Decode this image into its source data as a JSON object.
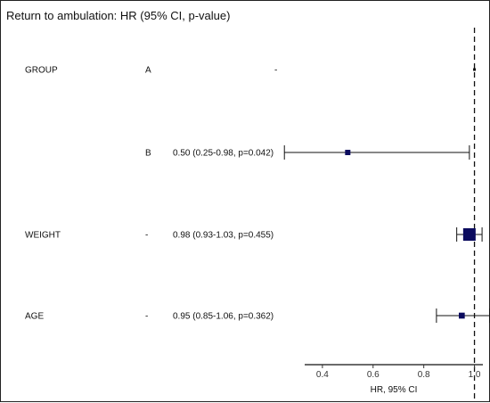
{
  "chart_data": {
    "type": "forest",
    "title": "Return to ambulation: HR (95% CI, p-value)",
    "xlabel": "HR, 95% CI",
    "xlim": [
      0.2,
      1.1
    ],
    "xticks": [
      "0.4",
      "0.6",
      "0.8",
      "1.0"
    ],
    "xtick_values": [
      0.4,
      0.6,
      0.8,
      1.0
    ],
    "reference_line": 1.0,
    "point_color": "#0b0b5e",
    "rows": [
      {
        "variable": "GROUP",
        "level": "A",
        "estimate_text": "-",
        "hr": 1.0,
        "lower": null,
        "upper": null,
        "reference": true
      },
      {
        "variable": "",
        "level": "B",
        "estimate_text": "0.50 (0.25-0.98, p=0.042)",
        "hr": 0.5,
        "lower": 0.25,
        "upper": 0.98,
        "reference": false
      },
      {
        "variable": "WEIGHT",
        "level": "-",
        "estimate_text": "0.98 (0.93-1.03, p=0.455)",
        "hr": 0.98,
        "lower": 0.93,
        "upper": 1.03,
        "reference": false
      },
      {
        "variable": "AGE",
        "level": "-",
        "estimate_text": "0.95 (0.85-1.06, p=0.362)",
        "hr": 0.95,
        "lower": 0.85,
        "upper": 1.06,
        "reference": false
      }
    ]
  }
}
